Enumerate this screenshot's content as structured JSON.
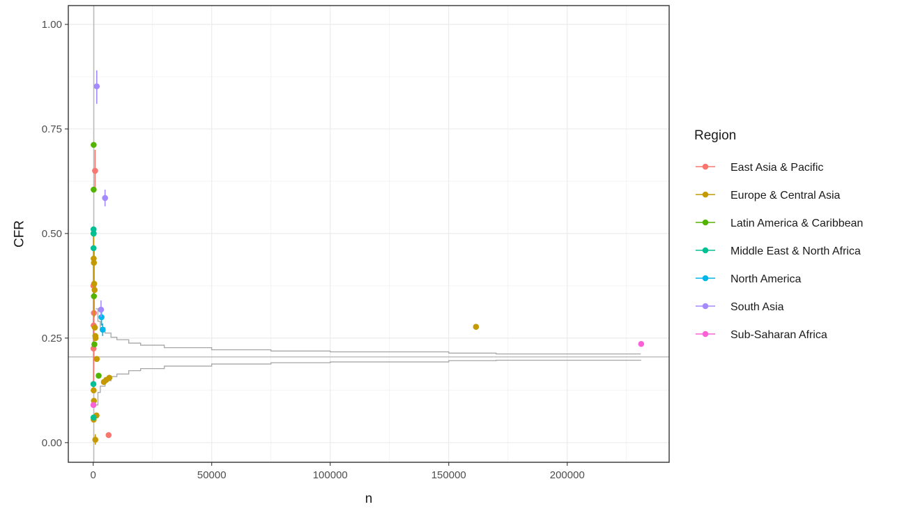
{
  "chart_data": {
    "type": "scatter",
    "title": "",
    "xlabel": "n",
    "ylabel": "CFR",
    "xlim": [
      -10500,
      243000
    ],
    "ylim": [
      -0.047,
      1.045
    ],
    "x_ticks": [
      0,
      50000,
      100000,
      150000,
      200000
    ],
    "x_tick_labels": [
      "0",
      "50000",
      "100000",
      "150000",
      "200000"
    ],
    "y_ticks": [
      0,
      0.25,
      0.5,
      0.75,
      1.0
    ],
    "y_tick_labels": [
      "0.00",
      "0.25",
      "0.50",
      "0.75",
      "1.00"
    ],
    "grid": true,
    "legend_title": "Region",
    "legend_position": "right",
    "reference_line": 0.205,
    "funnel": {
      "upper": [
        [
          1000,
          0.32
        ],
        [
          2000,
          0.29
        ],
        [
          3000,
          0.275
        ],
        [
          5000,
          0.262
        ],
        [
          7500,
          0.252
        ],
        [
          10000,
          0.246
        ],
        [
          15000,
          0.238
        ],
        [
          20000,
          0.233
        ],
        [
          30000,
          0.227
        ],
        [
          50000,
          0.222
        ],
        [
          75000,
          0.219
        ],
        [
          100000,
          0.217
        ],
        [
          150000,
          0.214
        ],
        [
          170000,
          0.212
        ],
        [
          231000,
          0.212
        ]
      ],
      "lower": [
        [
          1000,
          0.09
        ],
        [
          2000,
          0.12
        ],
        [
          3000,
          0.135
        ],
        [
          5000,
          0.148
        ],
        [
          7500,
          0.158
        ],
        [
          10000,
          0.164
        ],
        [
          15000,
          0.172
        ],
        [
          20000,
          0.177
        ],
        [
          30000,
          0.183
        ],
        [
          50000,
          0.188
        ],
        [
          75000,
          0.191
        ],
        [
          100000,
          0.193
        ],
        [
          150000,
          0.196
        ],
        [
          170000,
          0.197
        ],
        [
          231000,
          0.198
        ]
      ]
    },
    "series": [
      {
        "name": "East Asia & Pacific",
        "color": "#F8766D",
        "points": [
          {
            "x": 800,
            "y": 0.65,
            "lo": 0.6,
            "hi": 0.7
          },
          {
            "x": 300,
            "y": 0.31,
            "lo": 0.2,
            "hi": 0.42
          },
          {
            "x": 200,
            "y": 0.28,
            "lo": 0.18,
            "hi": 0.38
          },
          {
            "x": 100,
            "y": 0.375,
            "lo": 0.25,
            "hi": 0.5
          },
          {
            "x": 150,
            "y": 0.225,
            "lo": 0.12,
            "hi": 0.33
          },
          {
            "x": 6500,
            "y": 0.018
          }
        ]
      },
      {
        "name": "Europe & Central Asia",
        "color": "#C49A00",
        "points": [
          {
            "x": 200,
            "y": 0.44,
            "lo": 0.35,
            "hi": 0.5
          },
          {
            "x": 300,
            "y": 0.43
          },
          {
            "x": 400,
            "y": 0.38,
            "lo": 0.3,
            "hi": 0.46
          },
          {
            "x": 600,
            "y": 0.365
          },
          {
            "x": 700,
            "y": 0.275
          },
          {
            "x": 900,
            "y": 0.255
          },
          {
            "x": 1000,
            "y": 0.25
          },
          {
            "x": 1500,
            "y": 0.2
          },
          {
            "x": 200,
            "y": 0.125
          },
          {
            "x": 300,
            "y": 0.1
          },
          {
            "x": 200,
            "y": 0.055
          },
          {
            "x": 1400,
            "y": 0.065
          },
          {
            "x": 900,
            "y": 0.007,
            "lo": -0.005,
            "hi": 0.02
          },
          {
            "x": 4500,
            "y": 0.145
          },
          {
            "x": 5500,
            "y": 0.15
          },
          {
            "x": 6800,
            "y": 0.155
          },
          {
            "x": 161500,
            "y": 0.277
          }
        ]
      },
      {
        "name": "Latin America & Caribbean",
        "color": "#53B400",
        "points": [
          {
            "x": 200,
            "y": 0.712
          },
          {
            "x": 200,
            "y": 0.605
          },
          {
            "x": 150,
            "y": 0.5
          },
          {
            "x": 300,
            "y": 0.35
          },
          {
            "x": 500,
            "y": 0.235
          },
          {
            "x": 2300,
            "y": 0.16
          }
        ]
      },
      {
        "name": "Middle East & North Africa",
        "color": "#00C094",
        "points": [
          {
            "x": 150,
            "y": 0.51
          },
          {
            "x": 200,
            "y": 0.5
          },
          {
            "x": 150,
            "y": 0.465
          },
          {
            "x": 100,
            "y": 0.14
          },
          {
            "x": 150,
            "y": 0.06
          }
        ]
      },
      {
        "name": "North America",
        "color": "#00B6EB",
        "points": [
          {
            "x": 3500,
            "y": 0.3,
            "lo": 0.28,
            "hi": 0.32
          },
          {
            "x": 4000,
            "y": 0.27,
            "lo": 0.255,
            "hi": 0.285
          }
        ]
      },
      {
        "name": "South Asia",
        "color": "#A58AFF",
        "points": [
          {
            "x": 1500,
            "y": 0.852,
            "lo": 0.81,
            "hi": 0.89
          },
          {
            "x": 5000,
            "y": 0.585,
            "lo": 0.565,
            "hi": 0.605
          },
          {
            "x": 3300,
            "y": 0.318,
            "lo": 0.3,
            "hi": 0.34
          }
        ]
      },
      {
        "name": "Sub-Saharan Africa",
        "color": "#FB61D7",
        "points": [
          {
            "x": 100,
            "y": 0.09
          },
          {
            "x": 231200,
            "y": 0.236
          }
        ]
      }
    ]
  }
}
